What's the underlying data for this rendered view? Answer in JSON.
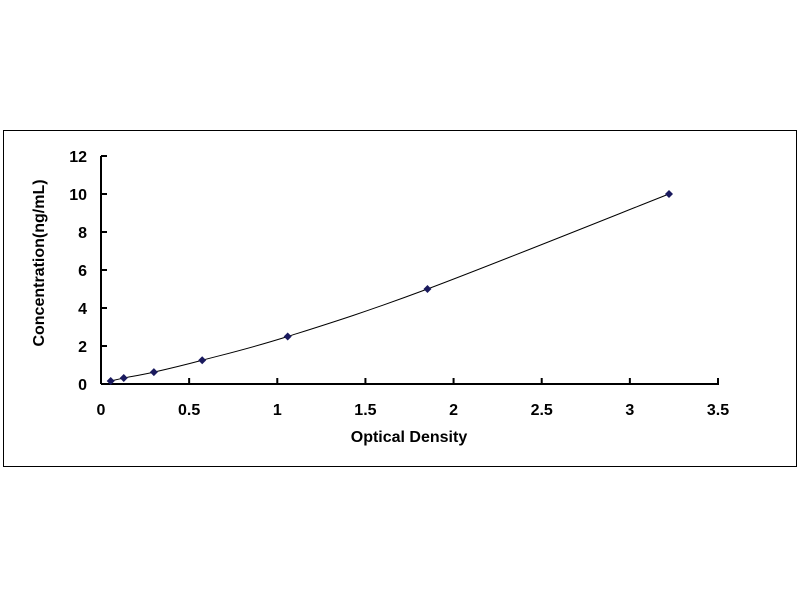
{
  "chart_data": {
    "type": "scatter",
    "title": "",
    "xlabel": "Optical Density",
    "ylabel": "Concentration(ng/mL)",
    "xlim": [
      0,
      3.5
    ],
    "ylim": [
      0,
      12
    ],
    "xticks": [
      "0",
      "0.5",
      "1",
      "1.5",
      "2",
      "2.5",
      "3",
      "3.5"
    ],
    "yticks": [
      "0",
      "2",
      "4",
      "6",
      "8",
      "10",
      "12"
    ],
    "grid": false,
    "legend": "none",
    "trendline": "smooth curve through points",
    "marker": "diamond",
    "colors": {
      "marker": "#1a1a5e",
      "line": "#000000"
    },
    "points": [
      {
        "x": 0.055,
        "y": 0.156
      },
      {
        "x": 0.129,
        "y": 0.313
      },
      {
        "x": 0.3,
        "y": 0.625
      },
      {
        "x": 0.574,
        "y": 1.25
      },
      {
        "x": 1.059,
        "y": 2.5
      },
      {
        "x": 1.852,
        "y": 5
      },
      {
        "x": 3.222,
        "y": 10
      }
    ]
  }
}
